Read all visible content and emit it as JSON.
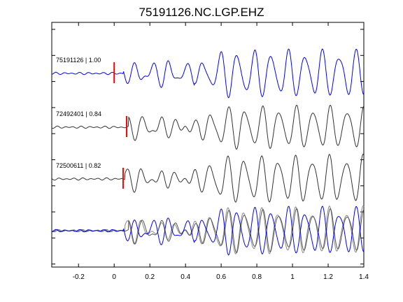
{
  "chart_data": {
    "type": "line",
    "title": "75191126.NC.LGP.EHZ",
    "xlabel": "",
    "ylabel": "",
    "xlim": [
      -0.35,
      1.4
    ],
    "x_ticks": [
      "-0.2",
      "0",
      "0.2",
      "0.4",
      "0.6",
      "0.8",
      "1",
      "1.2",
      "1.4"
    ],
    "x_tick_values": [
      -0.2,
      0,
      0.2,
      0.4,
      0.6,
      0.8,
      1.0,
      1.2,
      1.4
    ],
    "grid": false,
    "traces": [
      {
        "label": "75191126 | 1.00",
        "pick_time": 0.0,
        "color": "#0000ff",
        "onset": 0.05,
        "amplitude": 1.0,
        "seed": 1
      },
      {
        "label": "72492401 | 0.84",
        "pick_time": 0.07,
        "color": "#333333",
        "onset": 0.08,
        "amplitude": 0.9,
        "seed": 2
      },
      {
        "label": "72500611 | 0.82",
        "pick_time": 0.05,
        "color": "#333333",
        "onset": 0.06,
        "amplitude": 1.0,
        "seed": 3
      }
    ],
    "overlay": {
      "colors": [
        "#0000ff",
        "#555555",
        "#888888"
      ]
    },
    "pick_color": "#ff0000"
  }
}
